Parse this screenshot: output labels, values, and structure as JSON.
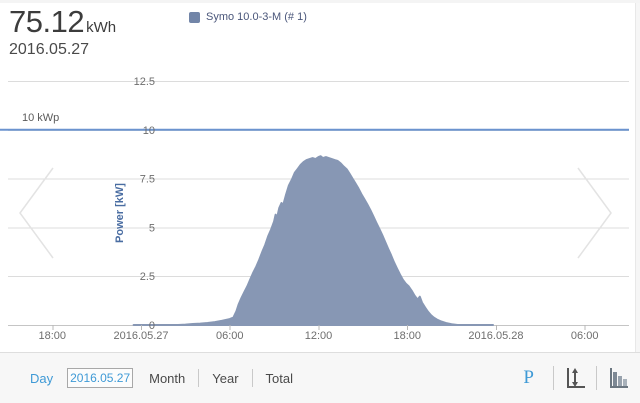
{
  "colors": {
    "accent": "#3f9ad6",
    "area": "#8797b4",
    "legend_marker": "#7285a8",
    "limit": "#6b93cf",
    "axis_label": "#4a6da2"
  },
  "header": {
    "energy_value": "75.12",
    "energy_unit": "kWh",
    "date": "2016.05.27"
  },
  "legend": {
    "series_label": "Symo 10.0-3-M (# 1)"
  },
  "chart_data": {
    "type": "area",
    "title": "",
    "xlabel": "",
    "ylabel": "Power [kW]",
    "x_unit": "hours from 2016-05-27 00:00",
    "x_range": [
      -9,
      33
    ],
    "ylim": [
      0,
      13.5
    ],
    "grid": true,
    "legend_position": "top",
    "y_ticks": [
      0,
      2.5,
      5,
      7.5,
      10,
      12.5
    ],
    "x_ticks": [
      {
        "t": -6,
        "label": "18:00"
      },
      {
        "t": 0,
        "label": "2016.05.27"
      },
      {
        "t": 6,
        "label": "06:00"
      },
      {
        "t": 12,
        "label": "12:00"
      },
      {
        "t": 18,
        "label": "18:00"
      },
      {
        "t": 24,
        "label": "2016.05.28"
      },
      {
        "t": 30,
        "label": "06:00"
      }
    ],
    "limit_line": {
      "value": 10,
      "label": "10 kWp",
      "color": "#6b93cf"
    },
    "series": [
      {
        "name": "Symo 10.0-3-M (# 1)",
        "color": "#8797b4",
        "points": [
          [
            -0.5,
            0
          ],
          [
            0,
            0
          ],
          [
            0.5,
            0
          ],
          [
            1,
            0
          ],
          [
            1.5,
            0
          ],
          [
            2,
            0
          ],
          [
            2.5,
            0
          ],
          [
            3,
            0.02
          ],
          [
            3.5,
            0.05
          ],
          [
            4,
            0.07
          ],
          [
            4.5,
            0.1
          ],
          [
            5,
            0.15
          ],
          [
            5.5,
            0.22
          ],
          [
            6,
            0.3
          ],
          [
            6.25,
            0.38
          ],
          [
            6.45,
            0.7
          ],
          [
            6.6,
            1.05
          ],
          [
            6.8,
            1.4
          ],
          [
            7,
            1.7
          ],
          [
            7.2,
            2.0
          ],
          [
            7.4,
            2.35
          ],
          [
            7.6,
            2.7
          ],
          [
            7.8,
            3.0
          ],
          [
            8,
            3.35
          ],
          [
            8.2,
            3.75
          ],
          [
            8.4,
            4.1
          ],
          [
            8.6,
            4.55
          ],
          [
            8.8,
            4.9
          ],
          [
            9,
            5.3
          ],
          [
            9.1,
            5.65
          ],
          [
            9.2,
            5.5
          ],
          [
            9.35,
            6.0
          ],
          [
            9.5,
            6.25
          ],
          [
            9.6,
            6.1
          ],
          [
            9.8,
            6.65
          ],
          [
            10,
            7.15
          ],
          [
            10.2,
            7.45
          ],
          [
            10.4,
            7.8
          ],
          [
            10.6,
            8.0
          ],
          [
            10.8,
            8.2
          ],
          [
            11,
            8.35
          ],
          [
            11.2,
            8.45
          ],
          [
            11.4,
            8.5
          ],
          [
            11.6,
            8.55
          ],
          [
            11.8,
            8.5
          ],
          [
            12,
            8.6
          ],
          [
            12.15,
            8.65
          ],
          [
            12.3,
            8.55
          ],
          [
            12.5,
            8.6
          ],
          [
            12.7,
            8.55
          ],
          [
            12.9,
            8.5
          ],
          [
            13.1,
            8.45
          ],
          [
            13.3,
            8.4
          ],
          [
            13.5,
            8.28
          ],
          [
            13.7,
            8.12
          ],
          [
            13.9,
            7.98
          ],
          [
            14.1,
            7.75
          ],
          [
            14.3,
            7.5
          ],
          [
            14.5,
            7.25
          ],
          [
            14.7,
            7.0
          ],
          [
            14.9,
            6.7
          ],
          [
            15.1,
            6.45
          ],
          [
            15.3,
            6.18
          ],
          [
            15.5,
            5.9
          ],
          [
            15.7,
            5.58
          ],
          [
            15.9,
            5.25
          ],
          [
            16.1,
            4.95
          ],
          [
            16.3,
            4.62
          ],
          [
            16.5,
            4.28
          ],
          [
            16.7,
            3.92
          ],
          [
            16.9,
            3.58
          ],
          [
            17.1,
            3.22
          ],
          [
            17.3,
            2.9
          ],
          [
            17.5,
            2.6
          ],
          [
            17.7,
            2.32
          ],
          [
            17.9,
            2.12
          ],
          [
            18.1,
            1.98
          ],
          [
            18.3,
            1.75
          ],
          [
            18.5,
            1.5
          ],
          [
            18.7,
            1.3
          ],
          [
            18.85,
            1.45
          ],
          [
            19,
            1.15
          ],
          [
            19.2,
            0.9
          ],
          [
            19.4,
            0.68
          ],
          [
            19.6,
            0.5
          ],
          [
            19.8,
            0.38
          ],
          [
            20,
            0.28
          ],
          [
            20.3,
            0.18
          ],
          [
            20.6,
            0.1
          ],
          [
            21,
            0.04
          ],
          [
            21.4,
            0
          ],
          [
            22,
            0
          ],
          [
            22.8,
            0
          ],
          [
            23.8,
            0
          ]
        ]
      }
    ]
  },
  "toolbar": {
    "day_label": "Day",
    "date_value": "2016.05.27",
    "month_label": "Month",
    "year_label": "Year",
    "total_label": "Total",
    "power_toggle_label": "P"
  }
}
